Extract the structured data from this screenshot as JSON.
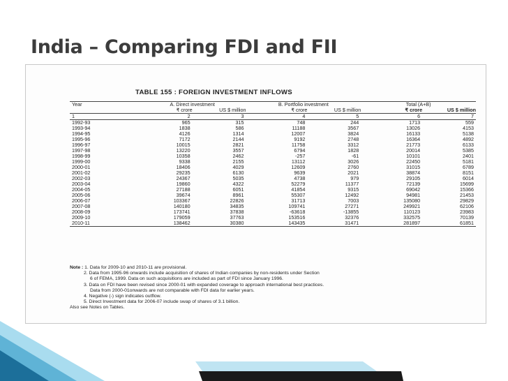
{
  "slide": {
    "title": "India – Comparing FDI and FII"
  },
  "table": {
    "title": "TABLE 155 : FOREIGN INVESTMENT INFLOWS",
    "headers": {
      "year": "Year",
      "direct": "A. Direct investment",
      "portfolio": "B. Portfolio investment",
      "total": "Total (A+B)"
    },
    "units": [
      "₹ crore",
      "US $ million",
      "₹ crore",
      "US $ million",
      "₹ crore",
      "US $ million"
    ],
    "col_numbers": [
      "1",
      "2",
      "3",
      "4",
      "5",
      "6",
      "7"
    ],
    "rows": [
      [
        "1992-93",
        "965",
        "315",
        "748",
        "244",
        "1713",
        "559"
      ],
      [
        "1993-94",
        "1838",
        "586",
        "11188",
        "3567",
        "13026",
        "4153"
      ],
      [
        "1994-95",
        "4126",
        "1314",
        "12007",
        "3824",
        "16133",
        "5138"
      ],
      [
        "1995-96",
        "7172",
        "2144",
        "9192",
        "2748",
        "16364",
        "4892"
      ],
      [
        "1996-97",
        "10015",
        "2821",
        "11758",
        "3312",
        "21773",
        "6133"
      ],
      [
        "1997-98",
        "13220",
        "3557",
        "6794",
        "1828",
        "20014",
        "5385"
      ],
      [
        "1998-99",
        "10358",
        "2462",
        "-257",
        "-61",
        "10101",
        "2401"
      ],
      [
        "1999-00",
        "9338",
        "2155",
        "13112",
        "3026",
        "22450",
        "5181"
      ],
      [
        "2000-01",
        "18406",
        "4029",
        "12609",
        "2760",
        "31015",
        "6789"
      ],
      [
        "2001-02",
        "29235",
        "6130",
        "9639",
        "2021",
        "38874",
        "8151"
      ],
      [
        "2002-03",
        "24367",
        "5035",
        "4738",
        "979",
        "29105",
        "6014"
      ],
      [
        "2003-04",
        "19860",
        "4322",
        "52279",
        "11377",
        "72139",
        "15699"
      ],
      [
        "2004-05",
        "27188",
        "6051",
        "41854",
        "9315",
        "69042",
        "15366"
      ],
      [
        "2005-06",
        "39674",
        "8961",
        "55307",
        "12492",
        "94981",
        "21453"
      ],
      [
        "2006-07",
        "103367",
        "22826",
        "31713",
        "7003",
        "135080",
        "29829"
      ],
      [
        "2007-08",
        "140180",
        "34835",
        "109741",
        "27271",
        "249921",
        "62106"
      ],
      [
        "2008-09",
        "173741",
        "37838",
        "-63618",
        "-13855",
        "110123",
        "23983"
      ],
      [
        "2009-10",
        "179059",
        "37763",
        "153516",
        "32376",
        "332575",
        "70139"
      ],
      [
        "2010-11",
        "138462",
        "30380",
        "143435",
        "31471",
        "281897",
        "61851"
      ]
    ]
  },
  "notes": {
    "label": "Note :",
    "lines": [
      "1. Data for 2009-10 and 2010-11 are provisional.",
      "2. Data from 1995-96 onwards include acquisition of shares of Indian companies by non-residents under Section",
      "6 of FEMA, 1999. Data on such acquisitions are included as part of FDI since January 1996.",
      "3. Data on FDI have been revised since 2000-01 with expanded coverage to approach international best practices.",
      "Data from 2000-01onwards are not comparable with FDI data for earlier years.",
      "4. Negative (-) sign indicates outflow.",
      "5. Direct Investment data for 2006-07 include swap of shares of 3.1 billion."
    ],
    "footer": "Also see Notes on Tables."
  },
  "colors": {
    "title": "#3c3c3c",
    "accent_light": "#a9dcef",
    "accent_mid": "#5fb3d6",
    "accent_dark": "#1c6f9a",
    "dark_shape": "#1a1a1a"
  }
}
